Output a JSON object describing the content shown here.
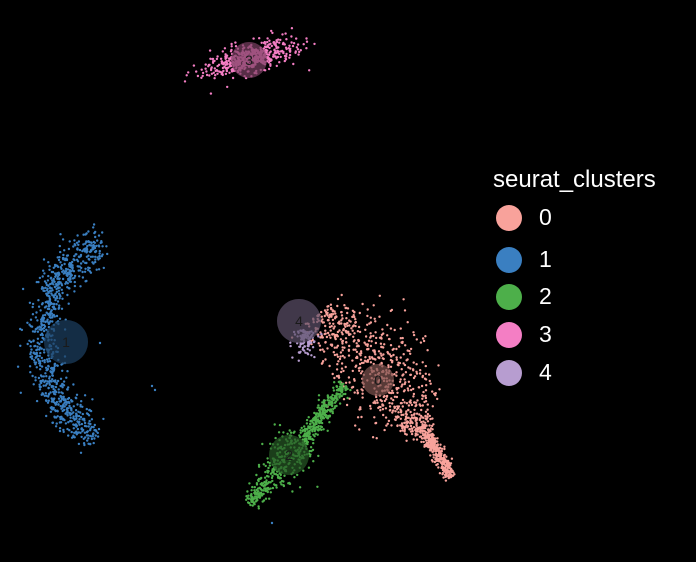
{
  "chart_data": {
    "type": "scatter",
    "title": "",
    "xlabel": "",
    "ylabel": "",
    "legend": {
      "title": "seurat_clusters",
      "position": "right"
    },
    "background": "#000000",
    "clusters": [
      {
        "id": "0",
        "label": "0",
        "color": "#F8A29B",
        "center_label": "0",
        "approx_points": 1100
      },
      {
        "id": "1",
        "label": "1",
        "color": "#3A7FC1",
        "center_label": "1",
        "approx_points": 900
      },
      {
        "id": "2",
        "label": "2",
        "color": "#4DAF4A",
        "center_label": "2",
        "approx_points": 650
      },
      {
        "id": "3",
        "label": "3",
        "color": "#F47EC4",
        "center_label": "3",
        "approx_points": 500
      },
      {
        "id": "4",
        "label": "4",
        "color": "#B79DD0",
        "center_label": "4",
        "approx_points": 90
      }
    ]
  }
}
